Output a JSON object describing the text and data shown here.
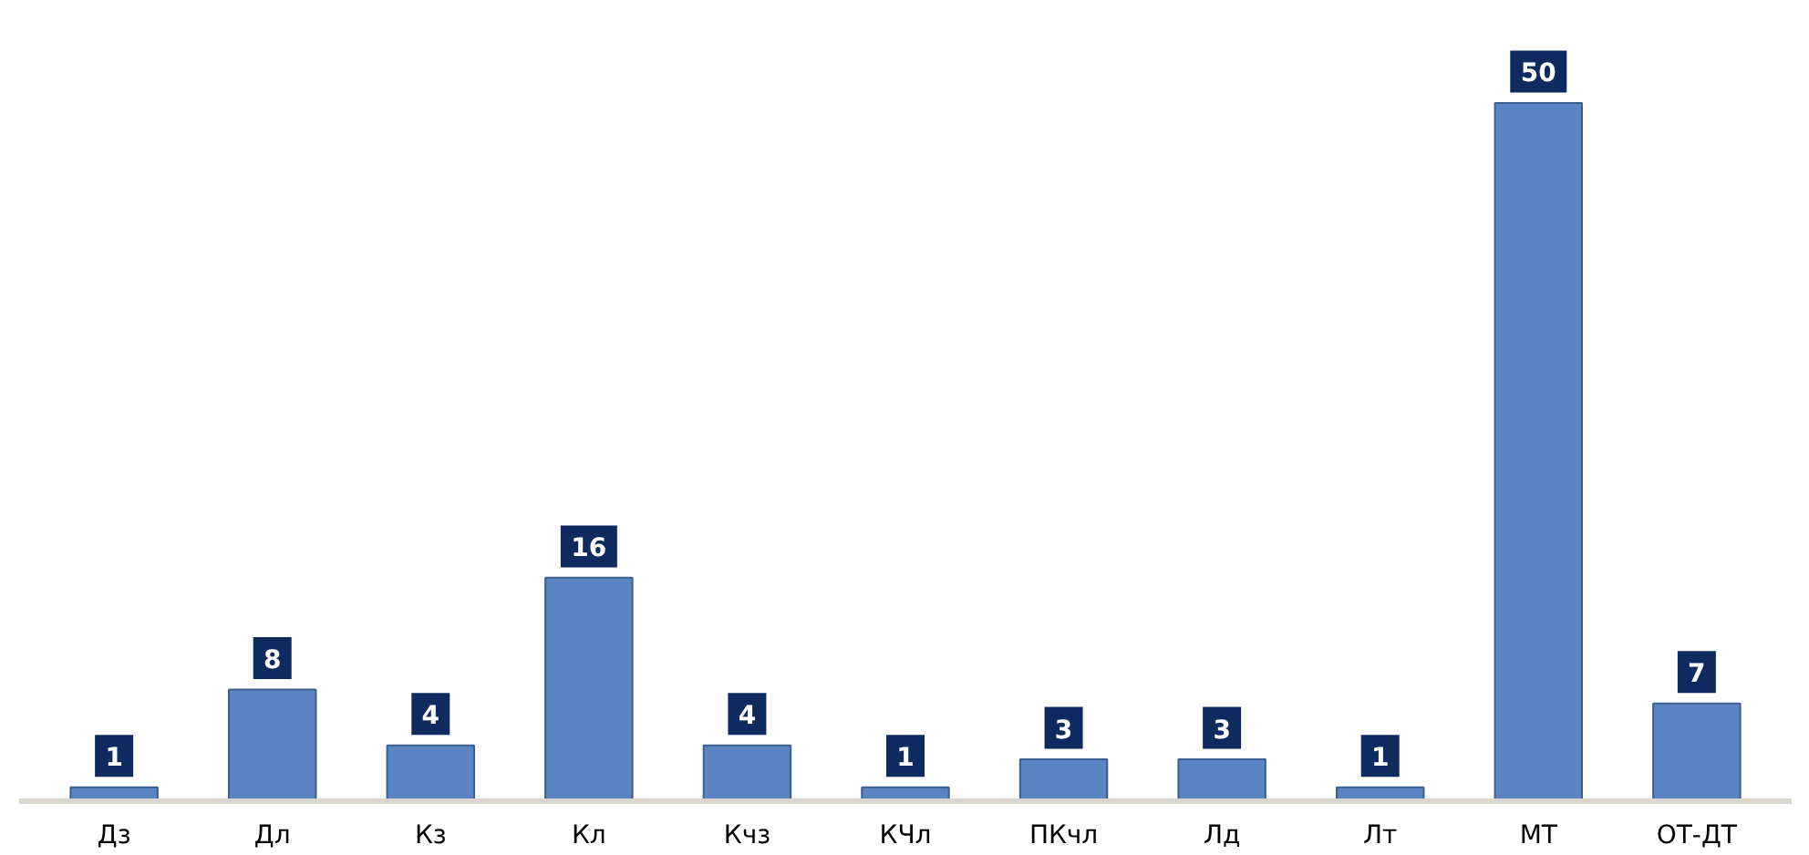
{
  "chart_data": {
    "type": "bar",
    "categories": [
      "Дз",
      "Дл",
      "Кз",
      "Кл",
      "Кчз",
      "КЧл",
      "ПКчл",
      "Лд",
      "Лт",
      "МТ",
      "ОТ-ДТ"
    ],
    "values": [
      1,
      8,
      4,
      16,
      4,
      1,
      3,
      3,
      1,
      50,
      7
    ],
    "color": "#5a84c2",
    "data_labels": true
  }
}
